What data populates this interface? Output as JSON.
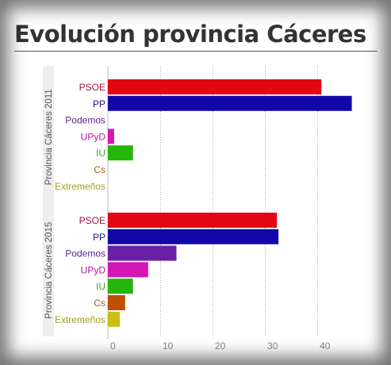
{
  "title": "Evolución provincia Cáceres",
  "chart_data": {
    "type": "bar",
    "orientation": "horizontal",
    "title": "Evolución provincia Cáceres",
    "xlim": [
      0,
      50
    ],
    "xticks": [
      0,
      10,
      20,
      30,
      40
    ],
    "grid": true,
    "categories": [
      "PSOE",
      "PP",
      "Podemos",
      "UPyD",
      "IU",
      "Cs",
      "Extremeños"
    ],
    "groups": [
      {
        "name": "Provincia Cáceres 2011",
        "values": [
          40.8,
          46.6,
          0,
          1.2,
          4.8,
          0,
          0
        ],
        "colors": [
          "#e30613",
          "#1307a8",
          "#6a1fa6",
          "#d516b4",
          "#26b50a",
          "#c14f00",
          "#c9c016"
        ]
      },
      {
        "name": "Provincia Cáceres 2015",
        "values": [
          32.3,
          32.6,
          13.1,
          7.7,
          4.8,
          3.3,
          2.3
        ],
        "colors": [
          "#e30613",
          "#1307a8",
          "#6a1fa6",
          "#d516b4",
          "#26b50a",
          "#c14f00",
          "#c9c016"
        ]
      }
    ],
    "label_colors": [
      "#a3143c",
      "#1a1a7a",
      "#5a1f8a",
      "#b8189c",
      "#4aa02a",
      "#b8560f",
      "#a8a018"
    ]
  }
}
